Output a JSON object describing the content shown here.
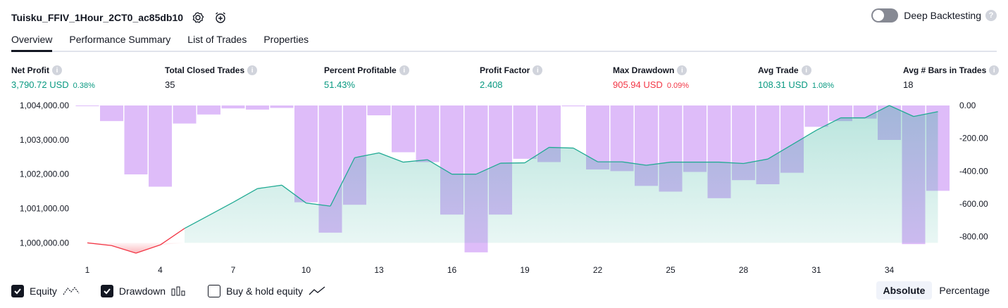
{
  "header": {
    "title": "Tuisku_FFIV_1Hour_2CT0_ac85db10",
    "deep_backtesting_label": "Deep Backtesting",
    "deep_backtesting_on": false
  },
  "tabs": [
    {
      "label": "Overview",
      "active": true
    },
    {
      "label": "Performance Summary",
      "active": false
    },
    {
      "label": "List of Trades",
      "active": false
    },
    {
      "label": "Properties",
      "active": false
    }
  ],
  "stats": [
    {
      "label": "Net Profit",
      "value": "3,790.72 USD",
      "pct": "0.38%",
      "color": "#089981"
    },
    {
      "label": "Total Closed Trades",
      "value": "35",
      "pct": "",
      "color": "#131722"
    },
    {
      "label": "Percent Profitable",
      "value": "51.43%",
      "pct": "",
      "color": "#089981"
    },
    {
      "label": "Profit Factor",
      "value": "2.408",
      "pct": "",
      "color": "#089981"
    },
    {
      "label": "Max Drawdown",
      "value": "905.94 USD",
      "pct": "0.09%",
      "color": "#f23645"
    },
    {
      "label": "Avg Trade",
      "value": "108.31 USD",
      "pct": "1.08%",
      "color": "#089981"
    },
    {
      "label": "Avg # Bars in Trades",
      "value": "18",
      "pct": "",
      "color": "#131722"
    }
  ],
  "chart_data": {
    "type": "line",
    "x": [
      1,
      2,
      3,
      4,
      5,
      6,
      7,
      8,
      9,
      10,
      11,
      12,
      13,
      14,
      15,
      16,
      17,
      18,
      19,
      20,
      21,
      22,
      23,
      24,
      25,
      26,
      27,
      28,
      29,
      30,
      31,
      32,
      33,
      34,
      35,
      36
    ],
    "xticks": [
      "1",
      "4",
      "7",
      "10",
      "13",
      "16",
      "19",
      "22",
      "25",
      "28",
      "31",
      "34"
    ],
    "y_left_ticks": [
      "1,004,000.00",
      "1,003,000.00",
      "1,002,000.00",
      "1,001,000.00",
      "1,000,000.00"
    ],
    "y_left_range": [
      999700,
      1004000
    ],
    "y_right_ticks": [
      "0.00",
      "-200.00",
      "-400.00",
      "-600.00",
      "-800.00"
    ],
    "y_right_range": [
      -900,
      0
    ],
    "series": [
      {
        "name": "Equity",
        "color": "#22ab94",
        "negative_color": "#f23645",
        "baseline": 1000000,
        "values": [
          1000000,
          999920,
          999700,
          999940,
          1000420,
          1000800,
          1001180,
          1001580,
          1001680,
          1001160,
          1001070,
          1002480,
          1002620,
          1002350,
          1002420,
          1002000,
          1002000,
          1002320,
          1002330,
          1002780,
          1002760,
          1002360,
          1002360,
          1002260,
          1002350,
          1002350,
          1002350,
          1002310,
          1002440,
          1002860,
          1003280,
          1003640,
          1003640,
          1004000,
          1003680,
          1003820
        ]
      },
      {
        "name": "Drawdown",
        "color": "#d8b0f8",
        "values": [
          0,
          -95,
          -420,
          -495,
          -110,
          -55,
          -18,
          -25,
          -15,
          -590,
          -775,
          -605,
          -60,
          -285,
          -345,
          -665,
          -895,
          -665,
          -325,
          -345,
          -5,
          -390,
          -400,
          -490,
          -525,
          -405,
          -565,
          -455,
          -480,
          -410,
          -130,
          -95,
          -80,
          -210,
          -845,
          -520
        ]
      }
    ]
  },
  "footer": {
    "checkboxes": [
      {
        "label": "Equity",
        "checked": true
      },
      {
        "label": "Drawdown",
        "checked": true
      },
      {
        "label": "Buy & hold equity",
        "checked": false
      }
    ],
    "modes": [
      {
        "label": "Absolute",
        "active": true
      },
      {
        "label": "Percentage",
        "active": false
      }
    ]
  }
}
